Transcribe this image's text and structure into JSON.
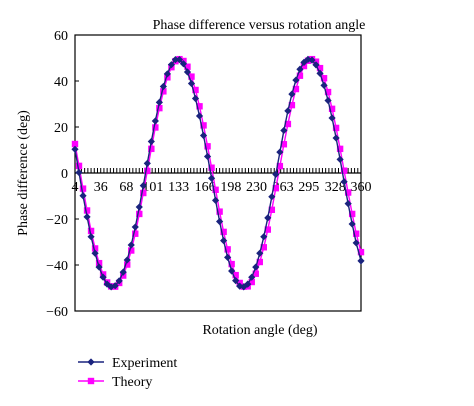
{
  "chart_data": {
    "type": "line",
    "title": "Phase difference versus rotation angle",
    "xlabel": "Rotation angle (deg)",
    "ylabel": "Phase difference (deg)",
    "xlim": [
      4,
      360
    ],
    "ylim": [
      -60,
      60
    ],
    "x_tick_labels": [
      "4",
      "36",
      "68",
      "101",
      "133",
      "166",
      "198",
      "230",
      "263",
      "295",
      "328",
      "360"
    ],
    "y_tick_labels": [
      "60",
      "40",
      "20",
      "0",
      "−20",
      "−40",
      "−60"
    ],
    "grid": false,
    "legend_position": "bottom-left",
    "series": [
      {
        "name": "Experiment",
        "color": "#1a237e",
        "marker": "diamond",
        "amplitude": 49.5,
        "phase_offset_deg": 7.7,
        "x": [
          4,
          9,
          14,
          19,
          24,
          29,
          34,
          39,
          44,
          49,
          54,
          59,
          64,
          69,
          74,
          79,
          84,
          89,
          94,
          99,
          104,
          109,
          114,
          119,
          124,
          129,
          134,
          139,
          144,
          149,
          154,
          159,
          164,
          169,
          174,
          179,
          184,
          189,
          194,
          199,
          204,
          209,
          214,
          219,
          224,
          229,
          234,
          239,
          244,
          249,
          254,
          259,
          264,
          269,
          274,
          279,
          284,
          289,
          294,
          299,
          304,
          309,
          314,
          319,
          324,
          329,
          334,
          339,
          344,
          349,
          354,
          360
        ],
        "values": [
          10.3,
          0.2,
          -9.9,
          -19.1,
          -27.7,
          -34.9,
          -40.9,
          -45.3,
          -48.3,
          -49.5,
          -49,
          -46.9,
          -43.1,
          -37.8,
          -31.3,
          -23.5,
          -14.8,
          -5.5,
          4.2,
          13.7,
          22.6,
          30.7,
          37.6,
          43.1,
          47.1,
          49.3,
          49.3,
          47.5,
          43.9,
          38.9,
          32.4,
          24.8,
          16.3,
          7.2,
          -2.3,
          -11.9,
          -21.1,
          -29.4,
          -36.7,
          -42.6,
          -46.8,
          -49.2,
          -49.5,
          -48.3,
          -45.3,
          -40.9,
          -34.9,
          -27.7,
          -19.5,
          -10.3,
          -0.6,
          9.1,
          18.5,
          27,
          34.3,
          40.4,
          45.1,
          48.1,
          49.4,
          49.1,
          47,
          43.3,
          38.1,
          31.5,
          23.9,
          15.2,
          5.9,
          -3.8,
          -13.3,
          -22.2,
          -30.4,
          -38.2
        ],
        "values_display_note": ""
      },
      {
        "name": "Theory",
        "color": "#ff00ff",
        "marker": "square",
        "amplitude": 49.5,
        "phase_offset_deg": -3.6,
        "x": [
          4,
          9,
          14,
          19,
          24,
          29,
          34,
          39,
          44,
          49,
          54,
          59,
          64,
          69,
          74,
          79,
          84,
          89,
          94,
          99,
          104,
          109,
          114,
          119,
          124,
          129,
          134,
          139,
          144,
          149,
          154,
          159,
          164,
          169,
          174,
          179,
          184,
          189,
          194,
          199,
          204,
          209,
          214,
          219,
          224,
          229,
          234,
          239,
          244,
          249,
          254,
          259,
          264,
          269,
          274,
          279,
          284,
          289,
          294,
          299,
          304,
          309,
          314,
          319,
          324,
          329,
          334,
          339,
          344,
          349,
          354,
          360
        ],
        "values": [
          12.6,
          3.1,
          -6.8,
          -16.3,
          -25.2,
          -32.8,
          -39.2,
          -44.1,
          -47.6,
          -49.3,
          -49.4,
          -47.8,
          -44.6,
          -39.8,
          -33.7,
          -26.4,
          -17.8,
          -8.7,
          0.9,
          10.5,
          19.8,
          28.2,
          35.5,
          41.6,
          46,
          48.6,
          49.5,
          48.7,
          46.2,
          41.9,
          36.1,
          29,
          20.7,
          11.6,
          2.3,
          -7.3,
          -16.8,
          -25.6,
          -33.2,
          -39.6,
          -44.4,
          -47.8,
          -49.4,
          -49.3,
          -47.4,
          -43.8,
          -38.7,
          -32.3,
          -24.6,
          -16,
          -6.6,
          3,
          12.5,
          21.3,
          29.5,
          36.5,
          42.3,
          46.5,
          48.8,
          49.5,
          48.4,
          45.6,
          41.2,
          35.2,
          27.9,
          19.6,
          10.5,
          1,
          -8.5,
          -17.8,
          -26.4,
          -34.4
        ]
      }
    ]
  }
}
